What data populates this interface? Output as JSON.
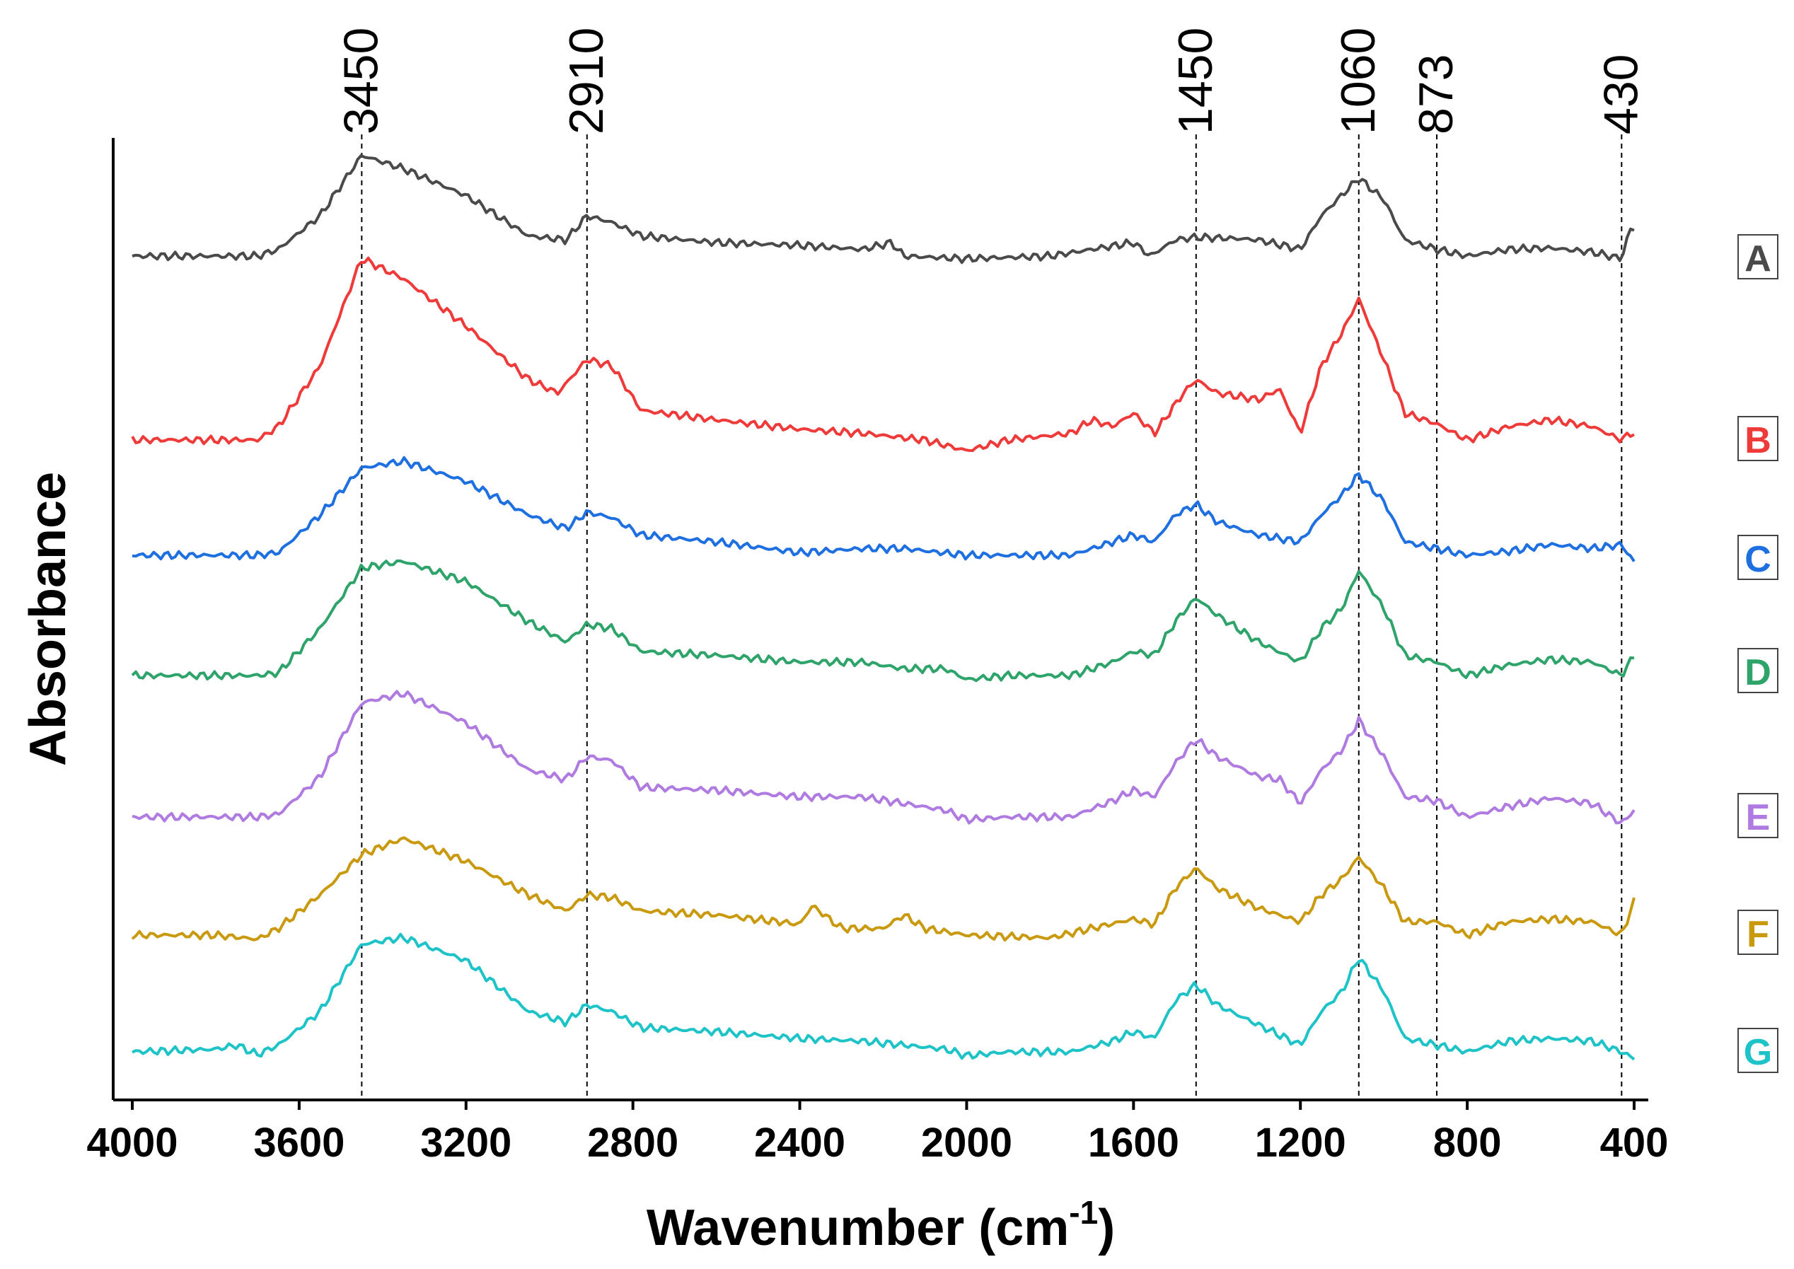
{
  "chart_data": {
    "type": "line",
    "title": "",
    "xlabel_main": "Wavenumber (cm",
    "xlabel_sup": "-1",
    "xlabel_close": ")",
    "ylabel": "Absorbance",
    "xlim": [
      4000,
      400
    ],
    "x_reversed": true,
    "x_ticks": [
      4000,
      3600,
      3200,
      2800,
      2400,
      2000,
      1600,
      1200,
      800,
      400
    ],
    "x_tick_labels": [
      "4000",
      "3600",
      "3200",
      "2800",
      "2400",
      "2000",
      "1600",
      "1200",
      "800",
      "400"
    ],
    "y_ticks_shown": false,
    "grid": false,
    "peak_markers": [
      {
        "x": 3450,
        "label": "3450"
      },
      {
        "x": 2910,
        "label": "2910"
      },
      {
        "x": 1450,
        "label": "1450"
      },
      {
        "x": 1060,
        "label": "1060"
      },
      {
        "x": 873,
        "label": "873"
      },
      {
        "x": 430,
        "label": "430"
      }
    ],
    "series": [
      {
        "name": "A",
        "color": "#4a4a4a",
        "baseline": 0.0,
        "points": [
          [
            4000,
            0.0
          ],
          [
            3800,
            0.0
          ],
          [
            3700,
            0.0
          ],
          [
            3650,
            0.05
          ],
          [
            3550,
            0.3
          ],
          [
            3450,
            0.75
          ],
          [
            3350,
            0.65
          ],
          [
            3200,
            0.45
          ],
          [
            3050,
            0.15
          ],
          [
            2960,
            0.12
          ],
          [
            2910,
            0.3
          ],
          [
            2850,
            0.25
          ],
          [
            2780,
            0.15
          ],
          [
            2600,
            0.1
          ],
          [
            2400,
            0.08
          ],
          [
            2250,
            0.05
          ],
          [
            2180,
            0.1
          ],
          [
            2150,
            0.0
          ],
          [
            2000,
            -0.02
          ],
          [
            1800,
            0.0
          ],
          [
            1700,
            0.05
          ],
          [
            1600,
            0.1
          ],
          [
            1560,
            0.0
          ],
          [
            1500,
            0.12
          ],
          [
            1450,
            0.14
          ],
          [
            1350,
            0.13
          ],
          [
            1300,
            0.12
          ],
          [
            1200,
            0.05
          ],
          [
            1150,
            0.3
          ],
          [
            1060,
            0.58
          ],
          [
            1000,
            0.42
          ],
          [
            950,
            0.12
          ],
          [
            873,
            0.05
          ],
          [
            800,
            0.0
          ],
          [
            700,
            0.05
          ],
          [
            600,
            0.06
          ],
          [
            500,
            0.03
          ],
          [
            430,
            -0.02
          ],
          [
            410,
            0.2
          ]
        ]
      },
      {
        "name": "B",
        "color": "#ef3a3a",
        "baseline": 0.0,
        "points": [
          [
            4000,
            0.0
          ],
          [
            3700,
            0.0
          ],
          [
            3650,
            0.1
          ],
          [
            3550,
            0.55
          ],
          [
            3450,
            1.35
          ],
          [
            3350,
            1.2
          ],
          [
            3200,
            0.85
          ],
          [
            3050,
            0.45
          ],
          [
            2980,
            0.35
          ],
          [
            2910,
            0.6
          ],
          [
            2850,
            0.55
          ],
          [
            2780,
            0.22
          ],
          [
            2600,
            0.15
          ],
          [
            2400,
            0.08
          ],
          [
            2250,
            0.05
          ],
          [
            2100,
            0.0
          ],
          [
            2000,
            -0.08
          ],
          [
            1900,
            0.0
          ],
          [
            1750,
            0.05
          ],
          [
            1700,
            0.15
          ],
          [
            1650,
            0.1
          ],
          [
            1600,
            0.2
          ],
          [
            1550,
            0.05
          ],
          [
            1480,
            0.35
          ],
          [
            1450,
            0.45
          ],
          [
            1400,
            0.35
          ],
          [
            1300,
            0.3
          ],
          [
            1250,
            0.38
          ],
          [
            1200,
            0.05
          ],
          [
            1150,
            0.55
          ],
          [
            1100,
            0.8
          ],
          [
            1060,
            1.05
          ],
          [
            1000,
            0.6
          ],
          [
            950,
            0.2
          ],
          [
            873,
            0.12
          ],
          [
            800,
            0.0
          ],
          [
            700,
            0.1
          ],
          [
            600,
            0.15
          ],
          [
            500,
            0.1
          ],
          [
            430,
            0.0
          ],
          [
            410,
            0.05
          ]
        ]
      },
      {
        "name": "C",
        "color": "#1e6fe0",
        "baseline": 0.0,
        "points": [
          [
            4000,
            0.0
          ],
          [
            3700,
            0.0
          ],
          [
            3650,
            0.02
          ],
          [
            3550,
            0.3
          ],
          [
            3450,
            0.65
          ],
          [
            3350,
            0.7
          ],
          [
            3200,
            0.55
          ],
          [
            3050,
            0.3
          ],
          [
            2960,
            0.2
          ],
          [
            2910,
            0.32
          ],
          [
            2850,
            0.28
          ],
          [
            2780,
            0.15
          ],
          [
            2600,
            0.1
          ],
          [
            2400,
            0.02
          ],
          [
            2250,
            0.05
          ],
          [
            2150,
            0.05
          ],
          [
            2000,
            0.0
          ],
          [
            1900,
            0.0
          ],
          [
            1750,
            0.0
          ],
          [
            1650,
            0.1
          ],
          [
            1600,
            0.15
          ],
          [
            1550,
            0.1
          ],
          [
            1500,
            0.3
          ],
          [
            1450,
            0.38
          ],
          [
            1400,
            0.25
          ],
          [
            1300,
            0.15
          ],
          [
            1200,
            0.1
          ],
          [
            1150,
            0.3
          ],
          [
            1100,
            0.45
          ],
          [
            1060,
            0.6
          ],
          [
            1000,
            0.4
          ],
          [
            950,
            0.1
          ],
          [
            873,
            0.05
          ],
          [
            800,
            0.0
          ],
          [
            700,
            0.03
          ],
          [
            600,
            0.08
          ],
          [
            500,
            0.05
          ],
          [
            430,
            0.08
          ],
          [
            400,
            -0.05
          ]
        ]
      },
      {
        "name": "D",
        "color": "#2ea36a",
        "baseline": 0.0,
        "points": [
          [
            4000,
            0.0
          ],
          [
            3700,
            0.0
          ],
          [
            3650,
            0.02
          ],
          [
            3550,
            0.35
          ],
          [
            3450,
            0.8
          ],
          [
            3350,
            0.85
          ],
          [
            3200,
            0.7
          ],
          [
            3050,
            0.4
          ],
          [
            2960,
            0.25
          ],
          [
            2910,
            0.38
          ],
          [
            2850,
            0.35
          ],
          [
            2780,
            0.18
          ],
          [
            2600,
            0.15
          ],
          [
            2400,
            0.1
          ],
          [
            2250,
            0.1
          ],
          [
            2150,
            0.05
          ],
          [
            2050,
            0.05
          ],
          [
            2000,
            -0.03
          ],
          [
            1900,
            0.0
          ],
          [
            1750,
            0.0
          ],
          [
            1650,
            0.1
          ],
          [
            1600,
            0.18
          ],
          [
            1550,
            0.15
          ],
          [
            1500,
            0.4
          ],
          [
            1450,
            0.58
          ],
          [
            1400,
            0.45
          ],
          [
            1300,
            0.25
          ],
          [
            1200,
            0.1
          ],
          [
            1150,
            0.35
          ],
          [
            1100,
            0.5
          ],
          [
            1060,
            0.78
          ],
          [
            1000,
            0.5
          ],
          [
            950,
            0.15
          ],
          [
            873,
            0.1
          ],
          [
            800,
            0.0
          ],
          [
            700,
            0.08
          ],
          [
            600,
            0.12
          ],
          [
            500,
            0.1
          ],
          [
            430,
            0.0
          ],
          [
            400,
            0.15
          ]
        ]
      },
      {
        "name": "E",
        "color": "#b07be0",
        "baseline": 0.0,
        "points": [
          [
            4000,
            0.0
          ],
          [
            3700,
            0.0
          ],
          [
            3650,
            0.02
          ],
          [
            3550,
            0.3
          ],
          [
            3450,
            0.85
          ],
          [
            3350,
            0.92
          ],
          [
            3200,
            0.7
          ],
          [
            3050,
            0.35
          ],
          [
            2960,
            0.28
          ],
          [
            2910,
            0.45
          ],
          [
            2850,
            0.42
          ],
          [
            2780,
            0.22
          ],
          [
            2600,
            0.2
          ],
          [
            2400,
            0.15
          ],
          [
            2250,
            0.15
          ],
          [
            2150,
            0.1
          ],
          [
            2050,
            0.05
          ],
          [
            2000,
            -0.02
          ],
          [
            1900,
            0.0
          ],
          [
            1750,
            0.0
          ],
          [
            1650,
            0.12
          ],
          [
            1600,
            0.2
          ],
          [
            1550,
            0.15
          ],
          [
            1500,
            0.4
          ],
          [
            1450,
            0.58
          ],
          [
            1400,
            0.45
          ],
          [
            1300,
            0.3
          ],
          [
            1250,
            0.28
          ],
          [
            1200,
            0.1
          ],
          [
            1150,
            0.35
          ],
          [
            1100,
            0.5
          ],
          [
            1060,
            0.72
          ],
          [
            1000,
            0.45
          ],
          [
            950,
            0.15
          ],
          [
            873,
            0.12
          ],
          [
            800,
            0.0
          ],
          [
            700,
            0.08
          ],
          [
            600,
            0.14
          ],
          [
            500,
            0.1
          ],
          [
            430,
            -0.05
          ],
          [
            400,
            0.05
          ]
        ]
      },
      {
        "name": "F",
        "color": "#c99a0f",
        "baseline": 0.0,
        "points": [
          [
            4000,
            0.0
          ],
          [
            3800,
            0.0
          ],
          [
            3700,
            -0.03
          ],
          [
            3650,
            0.05
          ],
          [
            3550,
            0.3
          ],
          [
            3450,
            0.6
          ],
          [
            3350,
            0.72
          ],
          [
            3200,
            0.55
          ],
          [
            3050,
            0.3
          ],
          [
            2960,
            0.18
          ],
          [
            2910,
            0.3
          ],
          [
            2850,
            0.28
          ],
          [
            2780,
            0.18
          ],
          [
            2600,
            0.15
          ],
          [
            2450,
            0.1
          ],
          [
            2400,
            0.08
          ],
          [
            2370,
            0.22
          ],
          [
            2300,
            0.05
          ],
          [
            2200,
            0.05
          ],
          [
            2150,
            0.15
          ],
          [
            2100,
            0.05
          ],
          [
            2000,
            0.0
          ],
          [
            1800,
            -0.02
          ],
          [
            1700,
            0.05
          ],
          [
            1600,
            0.12
          ],
          [
            1550,
            0.08
          ],
          [
            1500,
            0.35
          ],
          [
            1450,
            0.5
          ],
          [
            1400,
            0.35
          ],
          [
            1300,
            0.2
          ],
          [
            1200,
            0.1
          ],
          [
            1150,
            0.3
          ],
          [
            1100,
            0.42
          ],
          [
            1060,
            0.58
          ],
          [
            1000,
            0.35
          ],
          [
            950,
            0.1
          ],
          [
            873,
            0.1
          ],
          [
            800,
            0.0
          ],
          [
            700,
            0.1
          ],
          [
            600,
            0.12
          ],
          [
            500,
            0.1
          ],
          [
            430,
            0.0
          ],
          [
            400,
            0.25
          ]
        ]
      },
      {
        "name": "G",
        "color": "#1ec3c8",
        "baseline": 0.0,
        "points": [
          [
            4000,
            0.0
          ],
          [
            3800,
            0.02
          ],
          [
            3750,
            0.05
          ],
          [
            3700,
            -0.02
          ],
          [
            3650,
            0.05
          ],
          [
            3550,
            0.3
          ],
          [
            3450,
            0.8
          ],
          [
            3350,
            0.85
          ],
          [
            3200,
            0.68
          ],
          [
            3050,
            0.3
          ],
          [
            2960,
            0.22
          ],
          [
            2910,
            0.35
          ],
          [
            2850,
            0.3
          ],
          [
            2780,
            0.18
          ],
          [
            2600,
            0.15
          ],
          [
            2400,
            0.1
          ],
          [
            2250,
            0.08
          ],
          [
            2150,
            0.05
          ],
          [
            2050,
            0.02
          ],
          [
            2000,
            -0.03
          ],
          [
            1900,
            0.0
          ],
          [
            1750,
            0.0
          ],
          [
            1650,
            0.08
          ],
          [
            1600,
            0.15
          ],
          [
            1550,
            0.1
          ],
          [
            1500,
            0.38
          ],
          [
            1450,
            0.5
          ],
          [
            1400,
            0.35
          ],
          [
            1300,
            0.2
          ],
          [
            1200,
            0.05
          ],
          [
            1150,
            0.3
          ],
          [
            1100,
            0.45
          ],
          [
            1060,
            0.7
          ],
          [
            1000,
            0.45
          ],
          [
            950,
            0.1
          ],
          [
            873,
            0.05
          ],
          [
            800,
            0.0
          ],
          [
            700,
            0.08
          ],
          [
            600,
            0.1
          ],
          [
            500,
            0.08
          ],
          [
            430,
            0.0
          ],
          [
            400,
            -0.05
          ]
        ]
      }
    ]
  }
}
